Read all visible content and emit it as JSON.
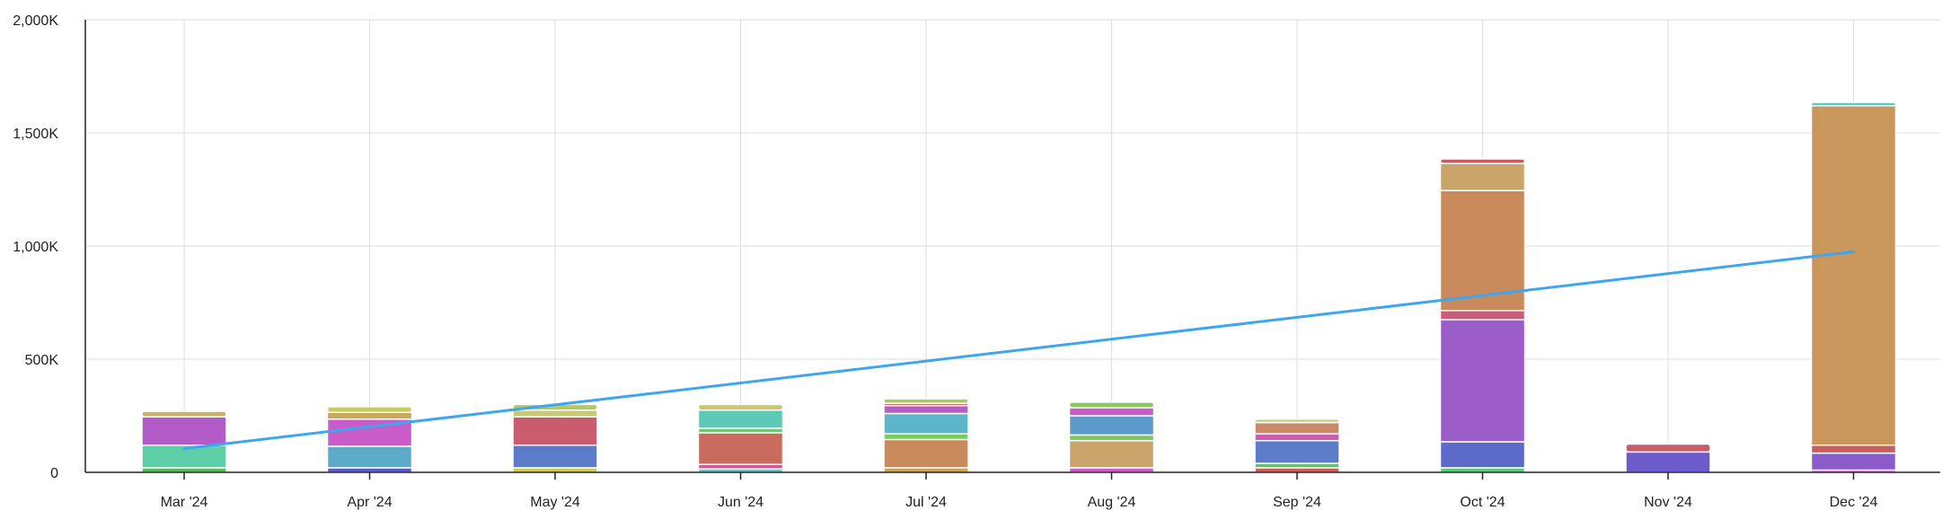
{
  "chart_data": {
    "type": "bar",
    "stacked": true,
    "categories": [
      "Mar '24",
      "Apr '24",
      "May '24",
      "Jun '24",
      "Jul '24",
      "Aug '24",
      "Sep '24",
      "Oct '24",
      "Nov '24",
      "Dec '24"
    ],
    "y_ticks": [
      "0",
      "500K",
      "1,000K",
      "1,500K",
      "2,000K"
    ],
    "y_tick_values": [
      0,
      500000,
      1000000,
      1500000,
      2000000
    ],
    "ylim": [
      0,
      2000000
    ],
    "grid": true,
    "legend": "none",
    "stacks": [
      [
        {
          "value": 20000,
          "color": "#5cb85c"
        },
        {
          "value": 100000,
          "color": "#5fcfa8"
        },
        {
          "value": 125000,
          "color": "#b35cc9"
        },
        {
          "value": 25000,
          "color": "#c9b06b"
        }
      ],
      [
        {
          "value": 20000,
          "color": "#5c5cc9"
        },
        {
          "value": 95000,
          "color": "#5cabc9"
        },
        {
          "value": 120000,
          "color": "#c95cc9"
        },
        {
          "value": 30000,
          "color": "#c9a95c"
        },
        {
          "value": 25000,
          "color": "#c9c95c"
        }
      ],
      [
        {
          "value": 20000,
          "color": "#c9c95c"
        },
        {
          "value": 100000,
          "color": "#5c7bc9"
        },
        {
          "value": 125000,
          "color": "#c95c6e"
        },
        {
          "value": 30000,
          "color": "#c9c97a"
        },
        {
          "value": 25000,
          "color": "#b5c95c"
        }
      ],
      [
        {
          "value": 15000,
          "color": "#5cc9c9"
        },
        {
          "value": 20000,
          "color": "#c95c9a"
        },
        {
          "value": 140000,
          "color": "#c96b5c"
        },
        {
          "value": 20000,
          "color": "#6bc97a"
        },
        {
          "value": 80000,
          "color": "#5cc9b5"
        },
        {
          "value": 25000,
          "color": "#c9c96b"
        }
      ],
      [
        {
          "value": 20000,
          "color": "#c9a05c"
        },
        {
          "value": 125000,
          "color": "#c98a5c"
        },
        {
          "value": 25000,
          "color": "#7ac95c"
        },
        {
          "value": 90000,
          "color": "#5cb5c9"
        },
        {
          "value": 35000,
          "color": "#b55cc9"
        },
        {
          "value": 10000,
          "color": "#c95c5c"
        },
        {
          "value": 20000,
          "color": "#a5c95c"
        }
      ],
      [
        {
          "value": 20000,
          "color": "#c95cc9"
        },
        {
          "value": 120000,
          "color": "#c9a56b"
        },
        {
          "value": 25000,
          "color": "#7ac95c"
        },
        {
          "value": 85000,
          "color": "#5c9ac9"
        },
        {
          "value": 35000,
          "color": "#c95cc9"
        },
        {
          "value": 25000,
          "color": "#8ac95c"
        }
      ],
      [
        {
          "value": 20000,
          "color": "#c95c5c"
        },
        {
          "value": 20000,
          "color": "#5cc95c"
        },
        {
          "value": 100000,
          "color": "#5c7bc9"
        },
        {
          "value": 30000,
          "color": "#c95cb5"
        },
        {
          "value": 50000,
          "color": "#c98a6b"
        },
        {
          "value": 15000,
          "color": "#c9c97a"
        }
      ],
      [
        {
          "value": 20000,
          "color": "#5cc97a"
        },
        {
          "value": 115000,
          "color": "#5c6bc9"
        },
        {
          "value": 540000,
          "color": "#9a5cc9"
        },
        {
          "value": 40000,
          "color": "#c95c7a"
        },
        {
          "value": 530000,
          "color": "#c98a5c"
        },
        {
          "value": 120000,
          "color": "#c9a56b"
        },
        {
          "value": 20000,
          "color": "#c95c5c"
        }
      ],
      [
        {
          "value": 90000,
          "color": "#6b5cc9"
        },
        {
          "value": 35000,
          "color": "#c95c6b"
        }
      ],
      [
        {
          "value": 10000,
          "color": "#c95cc9"
        },
        {
          "value": 75000,
          "color": "#8a5cc9"
        },
        {
          "value": 35000,
          "color": "#c95c5c"
        },
        {
          "value": 1500000,
          "color": "#c9965c"
        },
        {
          "value": 15000,
          "color": "#5cc9c9"
        }
      ]
    ],
    "line_series": {
      "color": "#3ea6ee",
      "points": [
        {
          "category": 0,
          "value": 105000
        },
        {
          "category": 9,
          "value": 975000
        }
      ]
    }
  }
}
